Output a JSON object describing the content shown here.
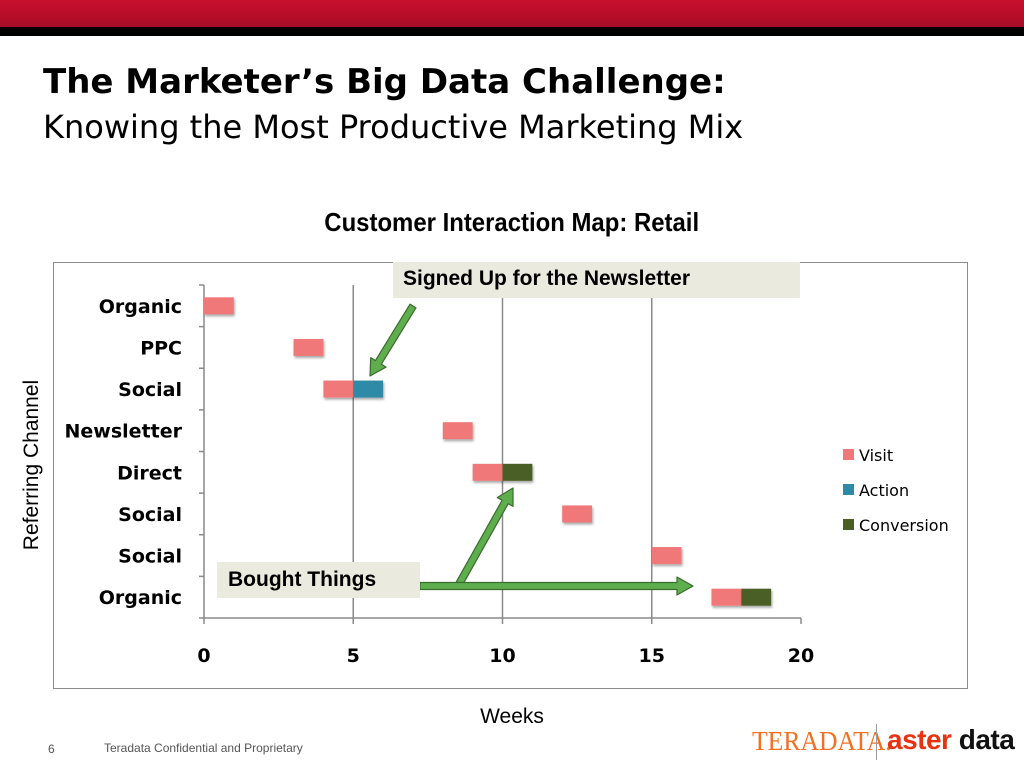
{
  "header": {
    "title": "The Marketer’s Big Data Challenge:",
    "subtitle": "Knowing the Most Productive Marketing Mix"
  },
  "chart_data": {
    "type": "bar",
    "orientation": "horizontal-timeline",
    "title": "Customer Interaction Map: Retail",
    "xlabel": "Weeks",
    "ylabel": "Referring Channel",
    "xlim": [
      0,
      20
    ],
    "xticks": [
      0,
      5,
      10,
      15,
      20
    ],
    "grid": "vertical at 5, 10, 15",
    "legend_position": "right",
    "categories": [
      "Organic",
      "PPC",
      "Social",
      "Newsletter",
      "Direct",
      "Social",
      "Social",
      "Organic"
    ],
    "series": [
      {
        "name": "Visit",
        "color": "#f07878",
        "segments": [
          [
            0,
            1
          ],
          [
            3,
            4
          ],
          [
            4,
            5
          ],
          [
            8,
            9
          ],
          [
            9,
            10
          ],
          [
            12,
            13
          ],
          [
            15,
            16
          ],
          [
            17,
            18
          ]
        ]
      },
      {
        "name": "Action",
        "color": "#2e8aa6",
        "segments": [
          null,
          null,
          [
            5,
            6
          ],
          null,
          null,
          null,
          null,
          null
        ]
      },
      {
        "name": "Conversion",
        "color": "#4a5f26",
        "segments": [
          null,
          null,
          null,
          null,
          [
            10,
            11
          ],
          null,
          null,
          [
            18,
            19
          ]
        ]
      }
    ],
    "annotations": [
      {
        "text": "Signed Up for the Newsletter",
        "points_to": "Social action at week 5-6"
      },
      {
        "text": "Bought Things",
        "points_to": "Direct conversion at week 10 and Organic conversion at week 18"
      }
    ]
  },
  "footer": {
    "page_number": "6",
    "confidential": "Teradata Confidential and Proprietary"
  },
  "logos": {
    "teradata": "TERADATA.",
    "aster_part1": "aster",
    "aster_part2": " data"
  }
}
